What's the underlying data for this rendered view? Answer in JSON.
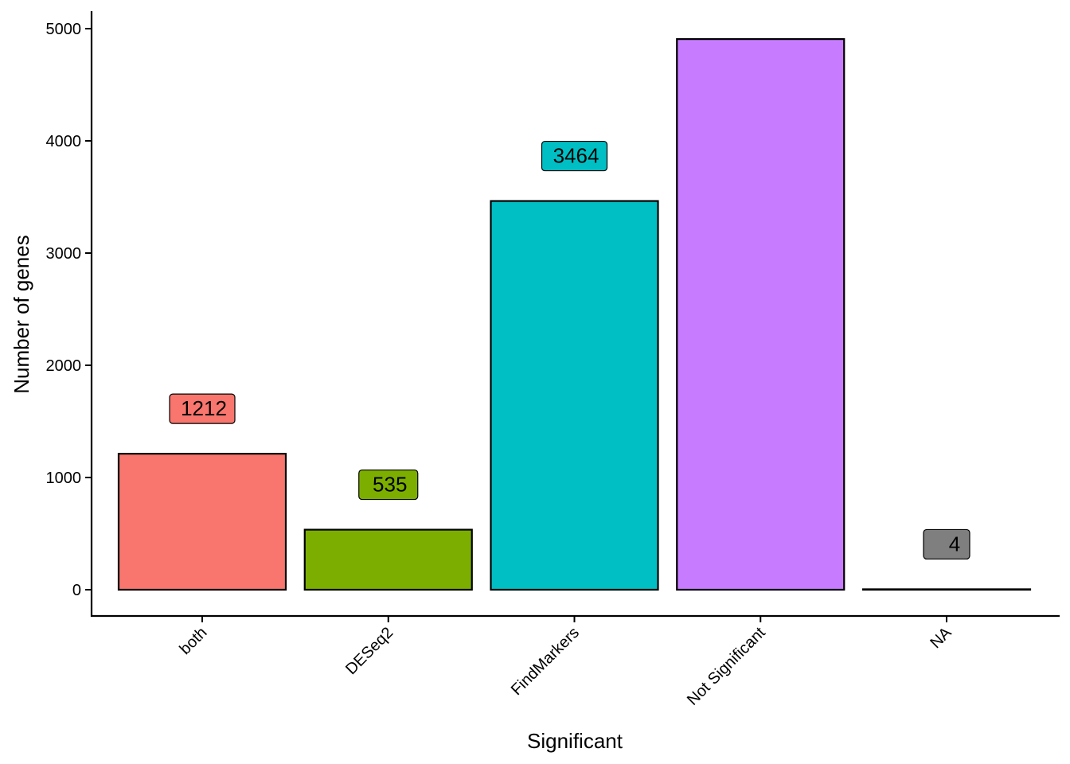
{
  "chart_data": {
    "type": "bar",
    "categories": [
      "both",
      "DESeq2",
      "FindMarkers",
      "Not Significant",
      "NA"
    ],
    "values": [
      1212,
      535,
      3464,
      4907,
      4
    ],
    "data_labels": [
      "1212",
      "535",
      "3464",
      "",
      "4"
    ],
    "colors": [
      "#F8766D",
      "#7CAE00",
      "#00BFC4",
      "#C77CFF",
      "#7F7F7F"
    ],
    "xlabel": "Significant",
    "ylabel": "Number of genes",
    "ylim": [
      0,
      5000
    ],
    "yticks": [
      0,
      1000,
      2000,
      3000,
      4000,
      5000
    ],
    "ytick_labels": [
      "0",
      "1000",
      "2000",
      "3000",
      "4000",
      "5000"
    ],
    "grid": false,
    "legend": "none"
  }
}
